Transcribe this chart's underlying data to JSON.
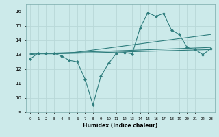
{
  "xlabel": "Humidex (Indice chaleur)",
  "xlim": [
    -0.5,
    23.5
  ],
  "ylim": [
    9,
    16.5
  ],
  "xtick_labels": [
    "0",
    "1",
    "2",
    "3",
    "4",
    "5",
    "6",
    "7",
    "8",
    "9",
    "10",
    "11",
    "12",
    "13",
    "14",
    "15",
    "16",
    "17",
    "18",
    "19",
    "20",
    "21",
    "22",
    "23"
  ],
  "ytick_values": [
    9,
    10,
    11,
    12,
    13,
    14,
    15,
    16
  ],
  "background_color": "#cceaea",
  "grid_color": "#aad4d4",
  "line_color": "#2e7d7d",
  "lines": [
    {
      "x": [
        0,
        1,
        2,
        3,
        4,
        5,
        6,
        7,
        8,
        9,
        10,
        11,
        12,
        13,
        14,
        15,
        16,
        17,
        18,
        19,
        20,
        21,
        22,
        23
      ],
      "y": [
        12.7,
        13.1,
        13.1,
        13.1,
        12.9,
        12.6,
        12.5,
        11.3,
        9.5,
        11.5,
        12.4,
        13.1,
        13.15,
        13.05,
        14.85,
        15.9,
        15.65,
        15.85,
        14.7,
        14.4,
        13.5,
        13.35,
        13.0,
        13.4
      ],
      "marker": "D",
      "markersize": 2.0,
      "linewidth": 0.8
    },
    {
      "x": [
        0,
        1,
        2,
        3,
        4,
        5,
        23
      ],
      "y": [
        13.1,
        13.1,
        13.1,
        13.1,
        13.1,
        13.1,
        14.4
      ],
      "marker": null,
      "markersize": 0,
      "linewidth": 0.8
    },
    {
      "x": [
        0,
        1,
        2,
        3,
        23
      ],
      "y": [
        13.05,
        13.1,
        13.1,
        13.1,
        13.5
      ],
      "marker": null,
      "markersize": 0,
      "linewidth": 0.8
    },
    {
      "x": [
        0,
        1,
        2,
        3,
        23
      ],
      "y": [
        13.0,
        13.05,
        13.05,
        13.05,
        13.35
      ],
      "marker": null,
      "markersize": 0,
      "linewidth": 0.8
    }
  ]
}
